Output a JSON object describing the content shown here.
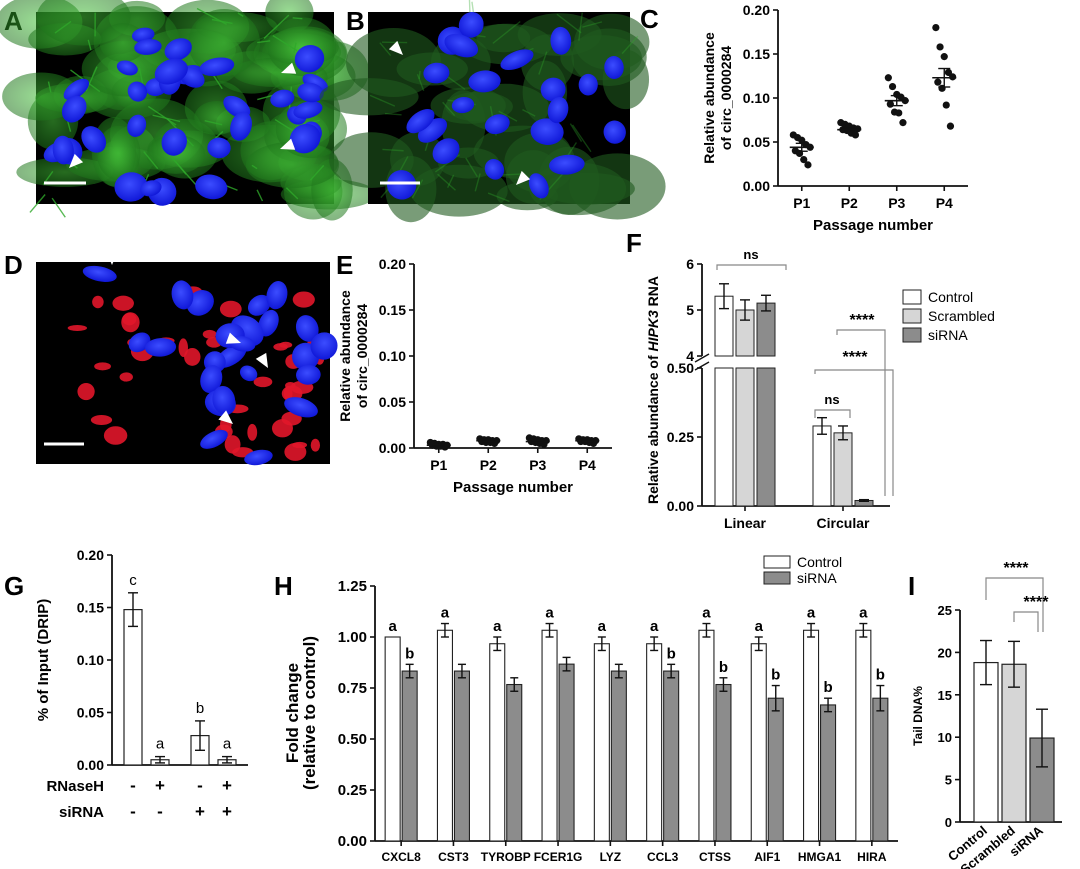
{
  "figure": {
    "micrographs": [
      {
        "letter": "A",
        "kind": "green-blue"
      },
      {
        "letter": "B",
        "kind": "green-blue-sparse"
      },
      {
        "letter": "D",
        "kind": "red-blue"
      }
    ],
    "colors": {
      "control": "#ffffff",
      "scrambled": "#d6d6d6",
      "sirna": "#8c8c8c",
      "axis": "#111111",
      "green": "#2fa82a",
      "blue": "#1c2cff",
      "red": "#e1162a"
    }
  },
  "chart_data": [
    {
      "id": "C",
      "letter": "C",
      "type": "scatter",
      "title": "",
      "xlabel": "Passage number",
      "ylabel": [
        "Relative abundance",
        "of circ_0000284"
      ],
      "categories": [
        "P1",
        "P2",
        "P3",
        "P4"
      ],
      "ylim": [
        0,
        0.2
      ],
      "yticks": [
        "0.00",
        "0.05",
        "0.10",
        "0.15",
        "0.20"
      ],
      "points": [
        [
          0.058,
          0.055,
          0.052,
          0.047,
          0.044,
          0.04,
          0.037,
          0.03,
          0.024
        ],
        [
          0.072,
          0.07,
          0.068,
          0.066,
          0.065,
          0.064,
          0.063,
          0.06,
          0.058
        ],
        [
          0.123,
          0.113,
          0.104,
          0.101,
          0.097,
          0.093,
          0.084,
          0.083,
          0.072
        ],
        [
          0.18,
          0.158,
          0.147,
          0.129,
          0.124,
          0.118,
          0.111,
          0.092,
          0.068
        ]
      ],
      "means": [
        0.044,
        0.064,
        0.097,
        0.123
      ],
      "sem": [
        0.0045,
        0.0017,
        0.0057,
        0.0105
      ]
    },
    {
      "id": "E",
      "letter": "E",
      "type": "scatter",
      "title": "",
      "xlabel": "Passage number",
      "ylabel": [
        "Relative abundance",
        "of circ_0000284"
      ],
      "categories": [
        "P1",
        "P2",
        "P3",
        "P4"
      ],
      "ylim": [
        0,
        0.2
      ],
      "yticks": [
        "0.00",
        "0.05",
        "0.10",
        "0.15",
        "0.20"
      ],
      "points": [
        [
          0.006,
          0.005,
          0.004,
          0.004,
          0.003,
          0.003,
          0.002,
          0.002,
          0.001
        ],
        [
          0.01,
          0.009,
          0.009,
          0.008,
          0.008,
          0.007,
          0.006,
          0.006,
          0.005
        ],
        [
          0.011,
          0.01,
          0.009,
          0.008,
          0.008,
          0.007,
          0.006,
          0.005,
          0.004
        ],
        [
          0.01,
          0.009,
          0.009,
          0.008,
          0.008,
          0.007,
          0.007,
          0.006,
          0.005
        ]
      ],
      "means": [
        0.003,
        0.008,
        0.007,
        0.008
      ],
      "sem": [
        0.001,
        0.001,
        0.001,
        0.001
      ]
    },
    {
      "id": "F",
      "letter": "F",
      "type": "bar",
      "title": "",
      "xlabel": "",
      "ylabel_prefix": "Relative abundance of ",
      "ylabel_italic": "HIPK3",
      "ylabel_suffix": " RNA",
      "categories": [
        "Linear",
        "Circular"
      ],
      "series": [
        {
          "name": "Control",
          "values": [
            5.3,
            0.29
          ],
          "err": [
            0.27,
            0.03
          ]
        },
        {
          "name": "Scrambled",
          "values": [
            5.0,
            0.265
          ],
          "err": [
            0.22,
            0.025
          ]
        },
        {
          "name": "siRNA",
          "values": [
            5.15,
            0.02
          ],
          "err": [
            0.17,
            0.003
          ]
        }
      ],
      "ylim_lower": [
        0,
        0.5
      ],
      "ylim_upper": [
        4,
        6
      ],
      "yticks_lower": [
        "0.00",
        "0.25",
        "0.50"
      ],
      "yticks_upper": [
        "4",
        "5",
        "6"
      ],
      "legend": [
        "Control",
        "Scrambled",
        "siRNA"
      ],
      "annotations": [
        "ns",
        "ns",
        "****",
        "****"
      ]
    },
    {
      "id": "G",
      "letter": "G",
      "type": "bar",
      "title": "",
      "ylabel": "% of Input (DRIP)",
      "ylim": [
        0,
        0.2
      ],
      "yticks": [
        "0.00",
        "0.05",
        "0.10",
        "0.15",
        "0.20"
      ],
      "values": [
        0.148,
        0.005,
        0.028,
        0.005
      ],
      "err": [
        0.016,
        0.003,
        0.014,
        0.003
      ],
      "letters": [
        "c",
        "a",
        "b",
        "a"
      ],
      "row_labels": [
        "RNaseH",
        "siRNA"
      ],
      "row_values": [
        [
          "-",
          "+",
          "-",
          "+"
        ],
        [
          "-",
          "-",
          "+",
          "+"
        ]
      ]
    },
    {
      "id": "H",
      "letter": "H",
      "type": "bar",
      "title": "",
      "ylabel": [
        "Fold change",
        "(relative to control)"
      ],
      "categories": [
        "CXCL8",
        "CST3",
        "TYROBP",
        "FCER1G",
        "LYZ",
        "CCL3",
        "CTSS",
        "AIF1",
        "HMGA1",
        "HIRA"
      ],
      "series": [
        {
          "name": "Control",
          "values": [
            1.0,
            1.033,
            0.967,
            1.033,
            0.967,
            0.967,
            1.033,
            0.967,
            1.033,
            1.033
          ],
          "err": [
            0.0,
            0.033,
            0.033,
            0.033,
            0.033,
            0.033,
            0.033,
            0.033,
            0.033,
            0.033
          ]
        },
        {
          "name": "siRNA",
          "values": [
            0.833,
            0.833,
            0.767,
            0.867,
            0.833,
            0.833,
            0.767,
            0.7,
            0.667,
            0.7
          ],
          "err": [
            0.033,
            0.033,
            0.033,
            0.033,
            0.033,
            0.033,
            0.033,
            0.062,
            0.033,
            0.062
          ]
        }
      ],
      "ylim": [
        0,
        1.25
      ],
      "yticks": [
        "0.00",
        "0.25",
        "0.50",
        "0.75",
        "1.00",
        "1.25"
      ],
      "letters_control": [
        "a",
        "a",
        "a",
        "a",
        "a",
        "a",
        "a",
        "a",
        "a",
        "a"
      ],
      "letters_sirna": [
        "b",
        "",
        "",
        "",
        "",
        "b",
        "b",
        "b",
        "b",
        "b"
      ],
      "legend": [
        "Control",
        "siRNA"
      ]
    },
    {
      "id": "I",
      "letter": "I",
      "type": "bar",
      "title": "",
      "ylabel": "Tail DNA%",
      "categories": [
        "Control",
        "Scrambled",
        "siRNA"
      ],
      "values": [
        18.8,
        18.6,
        9.9
      ],
      "err": [
        2.6,
        2.7,
        3.4
      ],
      "ylim": [
        0,
        25
      ],
      "yticks": [
        "0",
        "5",
        "10",
        "15",
        "20",
        "25"
      ],
      "annotations": [
        "****",
        "****"
      ]
    }
  ]
}
